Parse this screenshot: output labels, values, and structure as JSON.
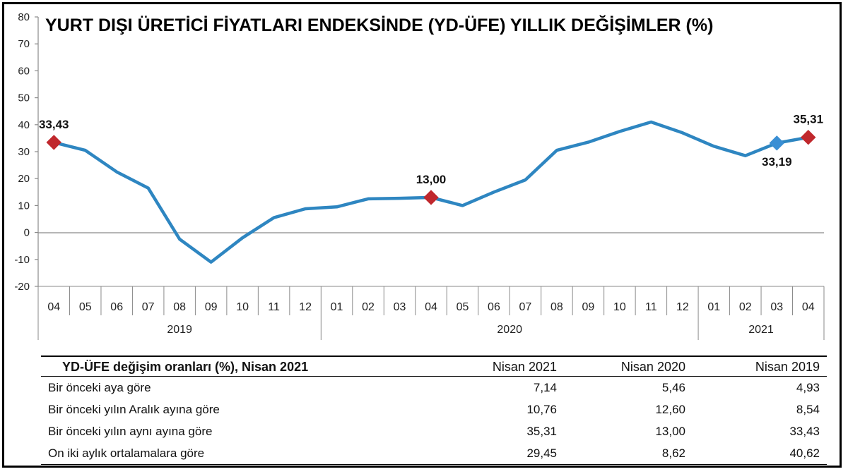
{
  "chart_data": {
    "type": "line",
    "title": "YURT DIŞI ÜRETİCİ FİYATLARI ENDEKSİNDE (YD-ÜFE) YILLIK DEĞİŞİMLER (%)",
    "x": [
      "04",
      "05",
      "06",
      "07",
      "08",
      "09",
      "10",
      "11",
      "12",
      "01",
      "02",
      "03",
      "04",
      "05",
      "06",
      "07",
      "08",
      "09",
      "10",
      "11",
      "12",
      "01",
      "02",
      "03",
      "04"
    ],
    "years": [
      {
        "label": "2019",
        "from": 0,
        "to": 8
      },
      {
        "label": "2020",
        "from": 9,
        "to": 20
      },
      {
        "label": "2021",
        "from": 21,
        "to": 24
      }
    ],
    "series": [
      {
        "color": "#2e86c1",
        "values": [
          33.43,
          30.5,
          22.5,
          16.5,
          -2.5,
          -11,
          -2,
          5.5,
          8.8,
          9.5,
          12.5,
          12.7,
          13.0,
          10.0,
          15.0,
          19.5,
          30.5,
          33.5,
          37.5,
          41.0,
          37.0,
          32.0,
          28.5,
          33.19,
          35.31
        ]
      }
    ],
    "yticks": [
      80,
      70,
      60,
      50,
      40,
      30,
      20,
      10,
      0,
      -10,
      -20
    ],
    "ylim": [
      -20,
      80
    ],
    "grid": false,
    "highlights": [
      {
        "index": 0,
        "label": "33,43",
        "color": "#c0282d",
        "label_pos": "above"
      },
      {
        "index": 12,
        "label": "13,00",
        "color": "#c0282d",
        "label_pos": "above"
      },
      {
        "index": 23,
        "label": "33,19",
        "color": "#3a8fd4",
        "label_pos": "below"
      },
      {
        "index": 24,
        "label": "35,31",
        "color": "#c0282d",
        "label_pos": "above"
      }
    ]
  },
  "table": {
    "title": "YD-ÜFE değişim oranları (%), Nisan 2021",
    "columns": [
      "Nisan 2021",
      "Nisan 2020",
      "Nisan 2019"
    ],
    "rows": [
      {
        "label": "Bir önceki aya göre",
        "values": [
          "7,14",
          "5,46",
          "4,93"
        ]
      },
      {
        "label": "Bir önceki yılın Aralık ayına göre",
        "values": [
          "10,76",
          "12,60",
          "8,54"
        ]
      },
      {
        "label": "Bir önceki yılın aynı ayına göre",
        "values": [
          "35,31",
          "13,00",
          "33,43"
        ]
      },
      {
        "label": "On iki aylık ortalamalara göre",
        "values": [
          "29,45",
          "8,62",
          "40,62"
        ]
      }
    ]
  }
}
